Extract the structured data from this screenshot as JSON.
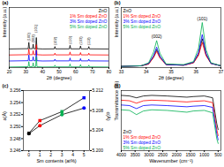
{
  "chart_data": [
    {
      "type": "line",
      "title": "(a)",
      "x_label": "2θ (degree)",
      "y_label": "Intensity (a.u.)",
      "x": [
        20,
        31.4,
        31.8,
        32.2,
        34.0,
        34.4,
        34.8,
        35.9,
        36.3,
        36.7,
        40,
        47.1,
        47.5,
        47.9,
        56.2,
        56.6,
        57.0,
        62.5,
        62.9,
        63.3,
        67.5,
        67.9,
        68.3,
        80
      ],
      "series": [
        {
          "name": "ZnO",
          "color": "#000000",
          "values": [
            31,
            31.5,
            42,
            31.5,
            31.5,
            39,
            31.5,
            31.5,
            50,
            31.5,
            31,
            31.2,
            35,
            31.2,
            31.2,
            37,
            31.2,
            31.2,
            36,
            31.2,
            31.2,
            35,
            31.2,
            31
          ]
        },
        {
          "name": "1% Sm doped ZnO",
          "color": "#ff0000",
          "values": [
            21,
            21.5,
            31,
            21.5,
            21.5,
            28,
            21.5,
            21.5,
            38,
            21.5,
            21,
            21.2,
            24,
            21.2,
            21.2,
            26,
            21.2,
            21.2,
            25,
            21.2,
            21.2,
            24,
            21.2,
            21
          ]
        },
        {
          "name": "3% Sm doped ZnO",
          "color": "#0000ff",
          "values": [
            11,
            11.5,
            21,
            11.5,
            11.5,
            18,
            11.5,
            11.5,
            29,
            11.5,
            11,
            11.2,
            14,
            11.2,
            11.2,
            16,
            11.2,
            11.2,
            15,
            11.2,
            11.2,
            14,
            11.2,
            11
          ]
        },
        {
          "name": "5% Sm doped ZnO",
          "color": "#00b050",
          "values": [
            1,
            1.5,
            10,
            1.5,
            1.5,
            8,
            1.5,
            1.5,
            18,
            1.5,
            1,
            1.2,
            4,
            1.2,
            1.2,
            6,
            1.2,
            1.2,
            5,
            1.2,
            1.2,
            4,
            1.2,
            1
          ]
        }
      ],
      "xlim": [
        20,
        80
      ],
      "xticks": [
        20,
        30,
        40,
        50,
        60,
        70,
        80
      ],
      "ylim": [
        0,
        100
      ],
      "tick_labels": "x",
      "legend": "top-right",
      "annotations": [
        {
          "text": "(100)",
          "x": 31.8,
          "y": 44
        },
        {
          "text": "(002)",
          "x": 34.4,
          "y": 41
        },
        {
          "text": "(101)",
          "x": 36.3,
          "y": 58
        },
        {
          "text": "(102)",
          "x": 47.5,
          "y": 37
        },
        {
          "text": "(110)",
          "x": 56.6,
          "y": 39
        },
        {
          "text": "(103)",
          "x": 62.9,
          "y": 38
        },
        {
          "text": "(112)",
          "x": 67.9,
          "y": 37
        }
      ]
    },
    {
      "type": "line",
      "title": "(b)",
      "x_label": "2θ (degree)",
      "y_label": "Intensity (a.u.)",
      "x": [
        33,
        33.8,
        34.1,
        34.3,
        34.42,
        34.55,
        34.8,
        35.5,
        35.9,
        36.1,
        36.25,
        36.4,
        36.6,
        37
      ],
      "series": [
        {
          "name": "ZnO",
          "color": "#000000",
          "values": [
            2,
            3,
            6,
            18,
            30,
            18,
            5,
            4,
            8,
            22,
            48,
            22,
            7,
            3
          ]
        },
        {
          "name": "1% Sm doped ZnO",
          "color": "#ff0000",
          "values": [
            2,
            3,
            6,
            17,
            27,
            16,
            5,
            4,
            8,
            20,
            42,
            20,
            7,
            3
          ]
        },
        {
          "name": "3% Sm doped ZnO",
          "color": "#0000ff",
          "values": [
            2,
            3,
            7,
            20,
            34,
            19,
            5,
            4,
            9,
            25,
            55,
            24,
            7,
            3
          ]
        },
        {
          "name": "5% Sm doped ZnO",
          "color": "#00b050",
          "values": [
            2,
            3,
            8,
            26,
            45,
            24,
            6,
            5,
            10,
            32,
            75,
            30,
            8,
            3
          ]
        }
      ],
      "xlim": [
        33,
        37
      ],
      "xticks": [
        33,
        34,
        35,
        36,
        37
      ],
      "ylim": [
        0,
        100
      ],
      "tick_labels": "x",
      "legend": "top-left",
      "annotations": [
        {
          "text": "(002)",
          "x": 34.42,
          "y": 50
        },
        {
          "text": "(101)",
          "x": 36.25,
          "y": 79
        }
      ]
    },
    {
      "type": "line",
      "title": "(c)",
      "x_label": "Sm contents (at%)",
      "y_label": "a(Å)",
      "y2_label": "c(Å)",
      "x": [
        0,
        1,
        3,
        5
      ],
      "series": [
        {
          "color": "#000000",
          "marker": "square",
          "colors": [
            "#000000",
            "#ff0000",
            "#00b050",
            "#0000ff"
          ],
          "values": [
            3.2489,
            3.251,
            3.2525,
            3.2548
          ]
        },
        {
          "color": "#000000",
          "marker": "circle",
          "axis": "y2",
          "colors": [
            "#000000",
            "#ff0000",
            "#00b050",
            "#0000ff"
          ],
          "values": [
            5.2034,
            5.205,
            5.2072,
            5.2085
          ]
        }
      ],
      "xlim": [
        -0.5,
        5.5
      ],
      "xticks": [
        0,
        1,
        2,
        3,
        4,
        5
      ],
      "ylim": [
        3.246,
        3.256
      ],
      "yticks": [
        3.246,
        3.248,
        {
          "value": 3.25,
          "label": "3.250"
        },
        3.252,
        3.254,
        3.256
      ],
      "y2lim": [
        5.2,
        5.212
      ],
      "y2ticks": [
        {
          "value": 5.2,
          "label": "5.200"
        },
        5.204,
        5.208,
        5.212
      ]
    },
    {
      "type": "line",
      "title": "(d)",
      "x_label": "Wavenumber (cm⁻¹)",
      "y_label": "Transmittance (%)",
      "x": [
        4000,
        3700,
        3450,
        3200,
        2900,
        2350,
        1630,
        1400,
        1000,
        700,
        550,
        500
      ],
      "series": [
        {
          "name": "ZnO",
          "color": "#000000",
          "values": [
            92,
            91,
            88,
            91,
            92,
            91,
            89,
            90,
            91,
            88,
            45,
            35
          ]
        },
        {
          "name": "1% Sm doped ZnO",
          "color": "#ff0000",
          "values": [
            84,
            83,
            79,
            83,
            84,
            83,
            81,
            82,
            83,
            80,
            35,
            25
          ]
        },
        {
          "name": "3% Sm doped ZnO",
          "color": "#0000ff",
          "values": [
            76,
            75,
            70,
            75,
            76,
            75,
            73,
            74,
            75,
            72,
            28,
            18
          ]
        },
        {
          "name": "5% Sm doped ZnO",
          "color": "#00b050",
          "values": [
            68,
            67,
            60,
            66,
            68,
            67,
            64,
            66,
            67,
            63,
            20,
            12
          ]
        }
      ],
      "xlim": [
        4000,
        400
      ],
      "xticks": [
        4000,
        3500,
        3000,
        2500,
        2000,
        1500,
        1000,
        500
      ],
      "ylim": [
        0,
        100
      ],
      "tick_labels": "x",
      "legend": "bottom-left"
    }
  ]
}
